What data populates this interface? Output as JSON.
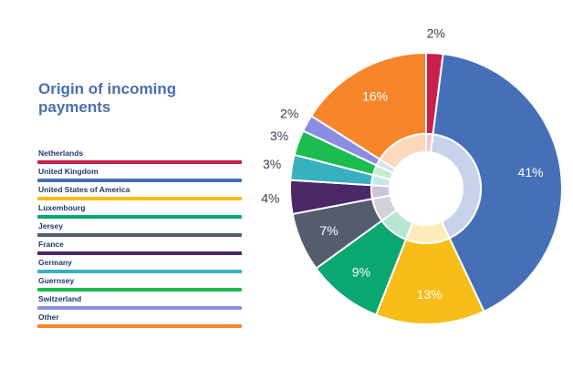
{
  "chart_data": {
    "type": "pie",
    "title": "Origin of incoming payments",
    "series": [
      {
        "name": "Netherlands",
        "value": 2,
        "label": "2%",
        "color": "#c8204e",
        "inner": "#f3c8d3"
      },
      {
        "name": "United Kingdom",
        "value": 41,
        "label": "41%",
        "color": "#4570b8",
        "inner": "#c7d3ea"
      },
      {
        "name": "United States of America",
        "value": 13,
        "label": "13%",
        "color": "#f7bd18",
        "inner": "#fdecbb"
      },
      {
        "name": "Luxembourg",
        "value": 9,
        "label": "9%",
        "color": "#0aa870",
        "inner": "#b7e6d3"
      },
      {
        "name": "Jersey",
        "value": 7,
        "label": "7%",
        "color": "#545d6e",
        "inner": "#d0d3d8"
      },
      {
        "name": "France",
        "value": 4,
        "label": "4%",
        "color": "#4b2768",
        "inner": "#cfc3d9"
      },
      {
        "name": "Germany",
        "value": 3,
        "label": "3%",
        "color": "#37b1bf",
        "inner": "#c2e8ec"
      },
      {
        "name": "Guernsey",
        "value": 3,
        "label": "3%",
        "color": "#1bbd4e",
        "inner": "#c2edce"
      },
      {
        "name": "Switzerland",
        "value": 2,
        "label": "2%",
        "color": "#8b8ee0",
        "inner": "#dcddf6"
      },
      {
        "name": "Other",
        "value": 16,
        "label": "16%",
        "color": "#f7862a",
        "inner": "#fdd9bc"
      }
    ]
  }
}
